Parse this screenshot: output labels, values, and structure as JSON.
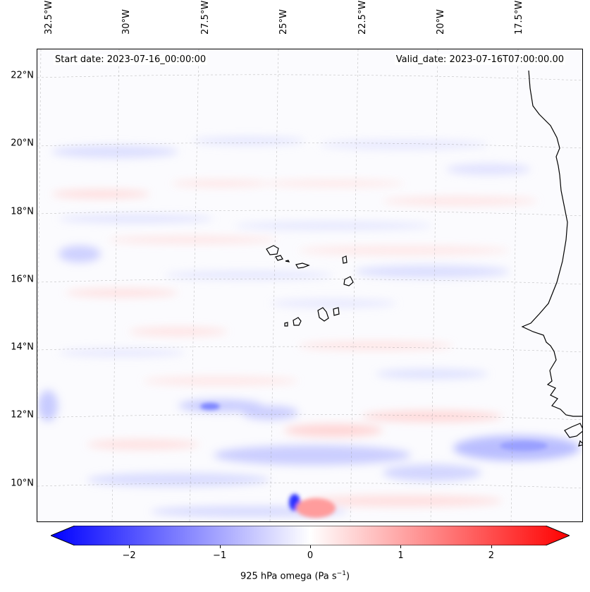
{
  "header": {
    "start_date": "Start date: 2023-07-16_00:00:00",
    "valid_date": "Valid_date: 2023-07-16T07:00:00.00"
  },
  "axes": {
    "lon_labels": [
      "32.5°W",
      "30°W",
      "27.5°W",
      "25°W",
      "22.5°W",
      "20°W",
      "17.5°W"
    ],
    "lat_labels": [
      "22°N",
      "20°N",
      "18°N",
      "16°N",
      "14°N",
      "12°N",
      "10°N"
    ]
  },
  "colorbar": {
    "ticks": [
      "−2",
      "−1",
      "0",
      "1",
      "2"
    ],
    "tick_values": [
      -2,
      -1,
      0,
      1,
      2
    ],
    "range": [
      -2.6,
      2.6
    ],
    "label_prefix": "925 hPa omega (Pa s",
    "label_exp": "−1",
    "label_suffix": ")",
    "colormap": "bwr",
    "color_neg": "#0000ff",
    "color_zero": "#ffffff",
    "color_pos": "#ff0000"
  },
  "map": {
    "projection": "lambert-conformal",
    "extent_lon": [
      -33,
      -15
    ],
    "extent_lat": [
      9,
      23
    ],
    "gridlines": true,
    "coastline_color": "#000000",
    "field": "925 hPa omega"
  }
}
